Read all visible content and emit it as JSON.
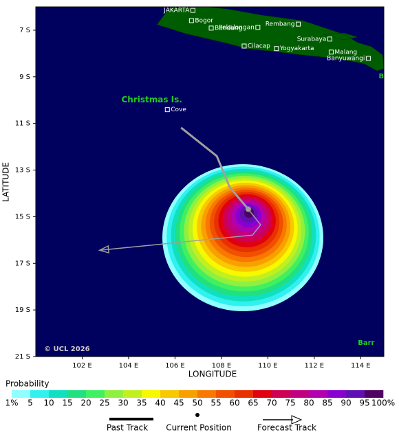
{
  "map": {
    "lonlim": [
      100,
      115
    ],
    "latlim": [
      6,
      21
    ],
    "lonticks": [
      {
        "value": 102,
        "label": "102 E"
      },
      {
        "value": 104,
        "label": "104 E"
      },
      {
        "value": 106,
        "label": "106 E"
      },
      {
        "value": 108,
        "label": "108 E"
      },
      {
        "value": 110,
        "label": "110 E"
      },
      {
        "value": 112,
        "label": "112 E"
      },
      {
        "value": 114,
        "label": "114 E"
      }
    ],
    "latticks": [
      {
        "value": 7,
        "label": "7 S"
      },
      {
        "value": 9,
        "label": "9 S"
      },
      {
        "value": 11,
        "label": "11 S"
      },
      {
        "value": 13,
        "label": "13 S"
      },
      {
        "value": 15,
        "label": "15 S"
      },
      {
        "value": 17,
        "label": "17 S"
      },
      {
        "value": 19,
        "label": "19 S"
      },
      {
        "value": 21,
        "label": "21 S"
      }
    ],
    "xlabel": "LONGITUDE",
    "ylabel": "LATITUDE",
    "places": [
      {
        "label": "JAKARTA",
        "lon": 106.77,
        "lat": 6.15,
        "label_side": "left"
      },
      {
        "label": "Bogor",
        "lon": 106.71,
        "lat": 6.59,
        "label_side": "right"
      },
      {
        "label": "Pekalongan",
        "lon": 109.57,
        "lat": 6.88,
        "label_side": "left"
      },
      {
        "label": "Bandung",
        "lon": 107.56,
        "lat": 6.91,
        "label_side": "right"
      },
      {
        "label": "Rembang",
        "lon": 111.31,
        "lat": 6.74,
        "label_side": "left"
      },
      {
        "label": "Surabaya",
        "lon": 112.67,
        "lat": 7.38,
        "label_side": "left"
      },
      {
        "label": "Cilacap",
        "lon": 108.98,
        "lat": 7.68,
        "label_side": "right"
      },
      {
        "label": "Yogyakarta",
        "lon": 110.37,
        "lat": 7.79,
        "label_side": "right"
      },
      {
        "label": "Malang",
        "lon": 112.73,
        "lat": 7.94,
        "label_side": "right"
      },
      {
        "label": "Banyuwangi",
        "lon": 114.33,
        "lat": 8.21,
        "label_side": "left"
      },
      {
        "label": "Cove",
        "lon": 105.67,
        "lat": 10.41,
        "label_side": "right"
      }
    ],
    "regions": [
      {
        "label": "Christmas Is.",
        "lon": 105.0,
        "lat": 10.0
      },
      {
        "label": "B",
        "lon": 114.89,
        "lat": 8.97
      },
      {
        "label": "Barr",
        "lon": 114.24,
        "lat": 20.41
      }
    ],
    "copyright": "© UCL 2026",
    "past_track": {
      "lon": [
        106.26,
        107.8,
        108.36,
        109.16
      ],
      "lat": [
        11.18,
        12.4,
        13.74,
        14.68
      ]
    },
    "current_position": {
      "lon": 109.16,
      "lat": 14.68
    },
    "forecast_track": {
      "lon": [
        109.16,
        109.69,
        109.34,
        102.75
      ],
      "lat": [
        14.68,
        15.35,
        15.79,
        16.44
      ]
    }
  },
  "legend": {
    "title": "Probability",
    "labels": [
      {
        "value": 1,
        "label": "1%"
      },
      5,
      10,
      15,
      20,
      25,
      30,
      35,
      40,
      45,
      50,
      55,
      60,
      65,
      70,
      75,
      80,
      85,
      90,
      95,
      {
        "value": 100,
        "label": "100%"
      }
    ],
    "colors": [
      "#90ffff",
      "#30f0f0",
      "#10e0c0",
      "#20e080",
      "#40f060",
      "#90f040",
      "#c0f020",
      "#f8f800",
      "#f8c800",
      "#f8a000",
      "#f87800",
      "#f05000",
      "#e83000",
      "#e00010",
      "#d00050",
      "#c00080",
      "#b000b0",
      "#8800d0",
      "#6010b0",
      "#500060"
    ],
    "past_track": "Past Track",
    "current_position": "Current Position",
    "forecast_track": "Forecast Track"
  }
}
